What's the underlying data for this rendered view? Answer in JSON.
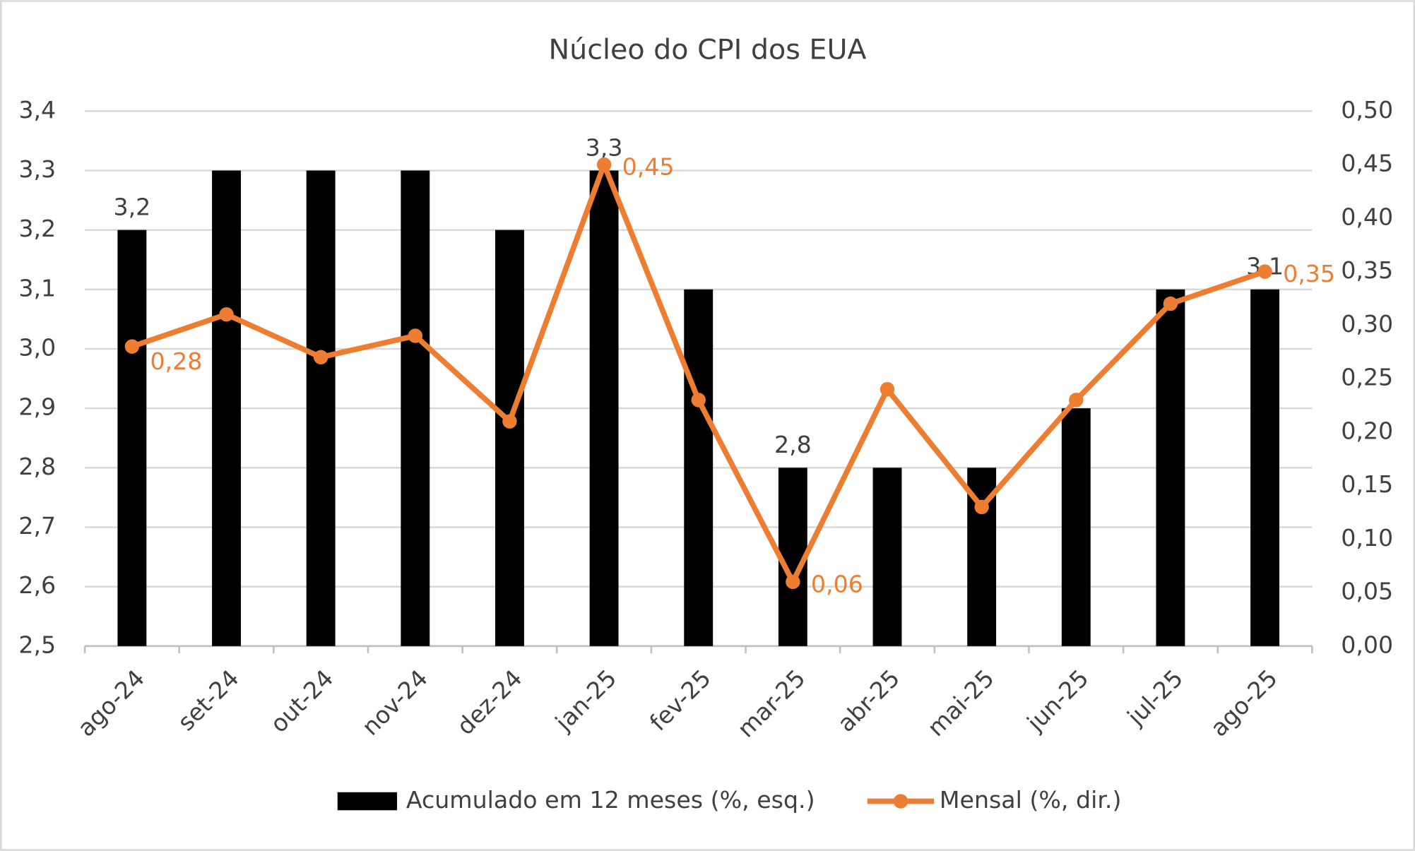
{
  "chart_data": {
    "type": "combo",
    "title": "Núcleo do CPI dos EUA",
    "categories": [
      "ago-24",
      "set-24",
      "out-24",
      "nov-24",
      "dez-24",
      "jan-25",
      "fev-25",
      "mar-25",
      "abr-25",
      "mai-25",
      "jun-25",
      "jul-25",
      "ago-25"
    ],
    "series": [
      {
        "name": "Acumulado em 12 meses (%, esq.)",
        "type": "bar",
        "color": "#000000",
        "values": [
          3.2,
          3.3,
          3.3,
          3.3,
          3.2,
          3.3,
          3.1,
          2.8,
          2.8,
          2.8,
          2.9,
          3.1,
          3.1
        ],
        "value_labels": [
          "3,2",
          null,
          null,
          null,
          null,
          "3,3",
          null,
          "2,8",
          null,
          null,
          null,
          null,
          "3,1"
        ]
      },
      {
        "name": "Mensal (%, dir.)",
        "type": "line",
        "axis": "y2",
        "color": "#ed7d31",
        "values": [
          0.28,
          0.31,
          0.27,
          0.29,
          0.21,
          0.45,
          0.23,
          0.06,
          0.24,
          0.13,
          0.23,
          0.32,
          0.35
        ],
        "value_labels": [
          "0,28",
          null,
          null,
          null,
          null,
          "0,45",
          null,
          "0,06",
          null,
          null,
          null,
          null,
          "0,35"
        ]
      }
    ],
    "ylim": [
      2.5,
      3.4
    ],
    "yticks": [
      {
        "value": 2.5,
        "label": "2,5"
      },
      {
        "value": 2.6,
        "label": "2,6"
      },
      {
        "value": 2.7,
        "label": "2,7"
      },
      {
        "value": 2.8,
        "label": "2,8"
      },
      {
        "value": 2.9,
        "label": "2,9"
      },
      {
        "value": 3.0,
        "label": "3,0"
      },
      {
        "value": 3.1,
        "label": "3,1"
      },
      {
        "value": 3.2,
        "label": "3,2"
      },
      {
        "value": 3.3,
        "label": "3,3"
      },
      {
        "value": 3.4,
        "label": "3,4"
      }
    ],
    "y2lim": [
      0,
      0.5
    ],
    "y2ticks": [
      {
        "value": 0,
        "label": "0,00"
      },
      {
        "value": 0.05,
        "label": "0,05"
      },
      {
        "value": 0.1,
        "label": "0,10"
      },
      {
        "value": 0.15,
        "label": "0,15"
      },
      {
        "value": 0.2,
        "label": "0,20"
      },
      {
        "value": 0.25,
        "label": "0,25"
      },
      {
        "value": 0.3,
        "label": "0,30"
      },
      {
        "value": 0.35,
        "label": "0,35"
      },
      {
        "value": 0.4,
        "label": "0,40"
      },
      {
        "value": 0.45,
        "label": "0,45"
      },
      {
        "value": 0.5,
        "label": "0,50"
      }
    ],
    "grid": true,
    "legend": "bottom"
  }
}
